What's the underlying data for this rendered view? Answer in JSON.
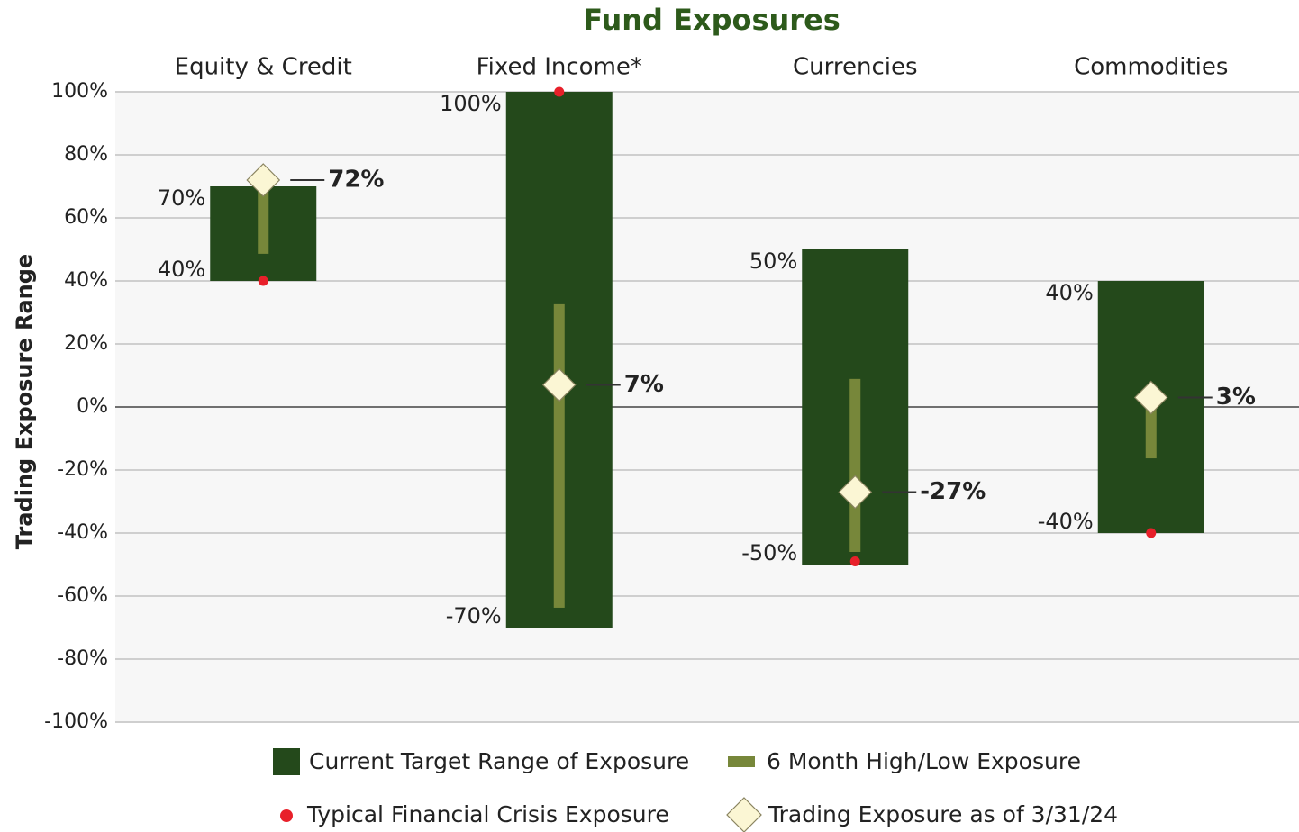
{
  "chart_data": {
    "type": "range",
    "title": "Fund Exposures",
    "ylabel": "Trading Exposure Range",
    "categories": [
      "Equity & Credit",
      "Fixed Income*",
      "Currencies",
      "Commodities"
    ],
    "ylim": [
      -100,
      100
    ],
    "yticks": [
      {
        "value": -100,
        "label": "-100%"
      },
      {
        "value": -80,
        "label": "-80%"
      },
      {
        "value": -60,
        "label": "-60%"
      },
      {
        "value": -40,
        "label": "-40%"
      },
      {
        "value": -20,
        "label": "-20%"
      },
      {
        "value": 0,
        "label": "0%"
      },
      {
        "value": 20,
        "label": "20%"
      },
      {
        "value": 40,
        "label": "40%"
      },
      {
        "value": 60,
        "label": "60%"
      },
      {
        "value": 80,
        "label": "80%"
      },
      {
        "value": 100,
        "label": "100%"
      }
    ],
    "grid": true,
    "series": [
      {
        "name": "Current Target Range of Exposure",
        "color": "#24491b",
        "low": [
          40,
          -70,
          -50,
          -40
        ],
        "high": [
          70,
          100,
          50,
          40
        ],
        "low_labels": [
          "40%",
          "-70%",
          "-50%",
          "-40%"
        ],
        "high_labels": [
          "70%",
          "100%",
          "50%",
          "40%"
        ]
      },
      {
        "name": "6 Month High/Low Exposure",
        "color": "#77873a",
        "low": [
          48.6,
          -63.7,
          -46,
          -16.3
        ],
        "high": [
          72,
          32.6,
          8.9,
          4.9
        ]
      },
      {
        "name": "Typical Financial Crisis Exposure",
        "color": "#e8202a",
        "values": [
          40,
          100,
          -49,
          -40
        ]
      },
      {
        "name": "Trading Exposure as of 3/31/24",
        "color": "#fbf6d4",
        "values": [
          72,
          7,
          -27,
          3
        ],
        "value_labels": [
          "72%",
          "7%",
          "-27%",
          "3%"
        ]
      }
    ]
  }
}
